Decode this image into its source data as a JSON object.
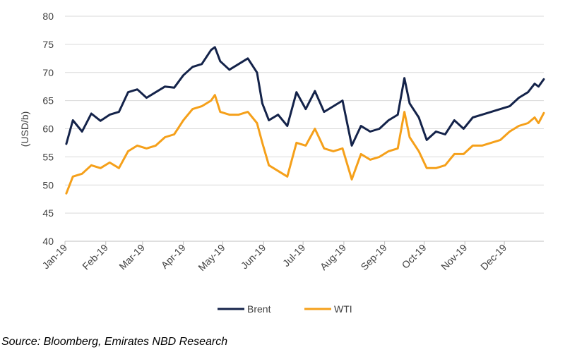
{
  "chart_data": {
    "type": "line",
    "ylabel": "(USD/b)",
    "ylim": [
      40,
      80
    ],
    "yticks": [
      40,
      45,
      50,
      55,
      60,
      65,
      70,
      75,
      80
    ],
    "x_tick_labels": [
      "Jan-19",
      "Feb-19",
      "Mar-19",
      "Apr-19",
      "May-19",
      "Jun-19",
      "Jul-19",
      "Aug-19",
      "Sep-19",
      "Oct-19",
      "Nov-19",
      "Dec-19"
    ],
    "grid": "horizontal",
    "legend_position": "bottom",
    "x_dates": [
      "2019-01-02",
      "2019-01-07",
      "2019-01-14",
      "2019-01-21",
      "2019-01-28",
      "2019-02-04",
      "2019-02-11",
      "2019-02-18",
      "2019-02-25",
      "2019-03-04",
      "2019-03-11",
      "2019-03-18",
      "2019-03-25",
      "2019-04-01",
      "2019-04-08",
      "2019-04-15",
      "2019-04-22",
      "2019-04-25",
      "2019-04-29",
      "2019-05-06",
      "2019-05-13",
      "2019-05-20",
      "2019-05-27",
      "2019-05-31",
      "2019-06-05",
      "2019-06-12",
      "2019-06-19",
      "2019-06-26",
      "2019-07-03",
      "2019-07-10",
      "2019-07-17",
      "2019-07-24",
      "2019-07-31",
      "2019-08-07",
      "2019-08-14",
      "2019-08-21",
      "2019-08-28",
      "2019-09-04",
      "2019-09-11",
      "2019-09-16",
      "2019-09-20",
      "2019-09-27",
      "2019-10-03",
      "2019-10-10",
      "2019-10-17",
      "2019-10-24",
      "2019-10-31",
      "2019-11-07",
      "2019-11-14",
      "2019-11-21",
      "2019-11-28",
      "2019-12-05",
      "2019-12-12",
      "2019-12-19",
      "2019-12-24",
      "2019-12-27",
      "2019-12-31"
    ],
    "series": [
      {
        "name": "Brent",
        "color": "#14234a",
        "values": [
          57.3,
          61.5,
          59.5,
          62.7,
          61.4,
          62.5,
          63.0,
          66.5,
          67.0,
          65.5,
          66.5,
          67.5,
          67.3,
          69.5,
          71.0,
          71.5,
          74.0,
          74.5,
          72.0,
          70.5,
          71.5,
          72.5,
          70.0,
          64.5,
          61.5,
          62.5,
          60.5,
          66.5,
          63.5,
          66.7,
          63.0,
          64.0,
          65.0,
          57.0,
          60.5,
          59.5,
          60.0,
          61.5,
          62.5,
          69.0,
          64.5,
          62.0,
          58.0,
          59.5,
          59.0,
          61.5,
          60.0,
          62.0,
          62.5,
          63.0,
          63.5,
          64.0,
          65.5,
          66.5,
          68.0,
          67.5,
          68.8
        ]
      },
      {
        "name": "WTI",
        "color": "#f5a01a",
        "values": [
          48.5,
          51.5,
          52.0,
          53.5,
          53.0,
          54.0,
          53.0,
          56.0,
          57.0,
          56.5,
          57.0,
          58.5,
          59.0,
          61.5,
          63.5,
          64.0,
          65.0,
          66.0,
          63.0,
          62.5,
          62.5,
          63.0,
          61.0,
          57.5,
          53.5,
          52.5,
          51.5,
          57.5,
          57.0,
          60.0,
          56.5,
          56.0,
          56.5,
          51.0,
          55.5,
          54.5,
          55.0,
          56.0,
          56.5,
          63.0,
          58.5,
          56.0,
          53.0,
          53.0,
          53.5,
          55.5,
          55.5,
          57.0,
          57.0,
          57.5,
          58.0,
          59.5,
          60.5,
          61.0,
          62.0,
          61.0,
          62.8
        ]
      }
    ]
  },
  "source": "Source: Bloomberg, Emirates NBD Research"
}
